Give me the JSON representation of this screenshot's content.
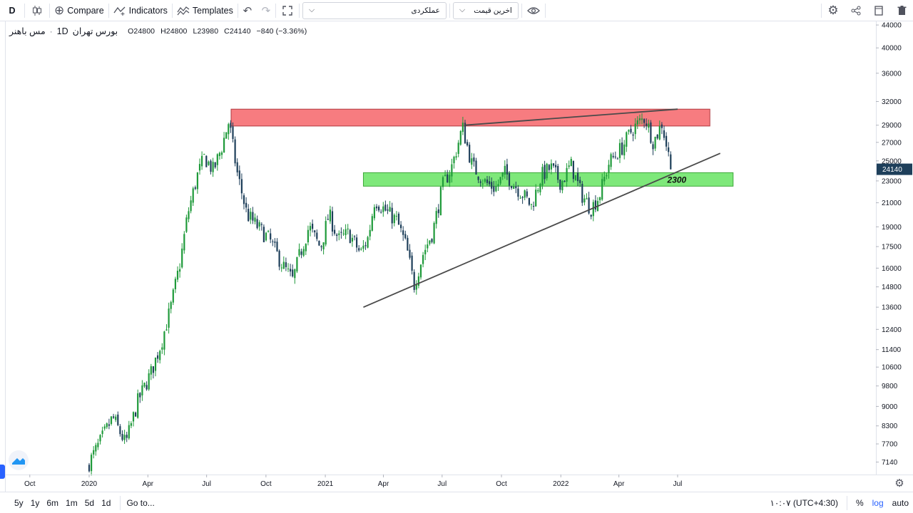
{
  "toolbar": {
    "symbol_letter": "D",
    "compare_label": "Compare",
    "indicators_label": "Indicators",
    "templates_label": "Templates",
    "performance_label": "عملکردی",
    "price_label": "اخرین قیمت"
  },
  "legend": {
    "symbol": "مس باهنر",
    "interval": "1D",
    "exchange": "بورس تهران",
    "open": "O24800",
    "high": "H24800",
    "low": "L23980",
    "close": "C24140",
    "change": "−840 (−3.36%)"
  },
  "colors": {
    "up": "#1f9a3a",
    "down": "#1e3f5a",
    "resistance_zone": "#f77c80",
    "support_zone": "#7ee87a",
    "trendline": "#4a4a4a",
    "price_label_bg": "#1e3f5a",
    "accent": "#2962ff"
  },
  "chart_data": {
    "type": "candlestick",
    "y_scale": "log",
    "y_ticks": [
      44000,
      40000,
      36000,
      32000,
      29000,
      27000,
      25000,
      23000,
      21000,
      19000,
      17500,
      16000,
      14800,
      13600,
      12400,
      11400,
      10600,
      9800,
      9000,
      8300,
      7700,
      7140
    ],
    "x_ticks": [
      "Oct",
      "2020",
      "Apr",
      "Jul",
      "Oct",
      "2021",
      "Apr",
      "Jul",
      "Oct",
      "2022",
      "Apr",
      "Jul"
    ],
    "last_price": 24140,
    "annotation_text": "2300",
    "price_path": [
      [
        "2020-01-01",
        7000
      ],
      [
        "2020-01-20",
        7700
      ],
      [
        "2020-02-10",
        8600
      ],
      [
        "2020-03-01",
        7700
      ],
      [
        "2020-03-20",
        9200
      ],
      [
        "2020-04-10",
        10400
      ],
      [
        "2020-04-25",
        11700
      ],
      [
        "2020-05-10",
        13600
      ],
      [
        "2020-05-25",
        16500
      ],
      [
        "2020-06-05",
        20000
      ],
      [
        "2020-06-20",
        23500
      ],
      [
        "2020-07-01",
        25400
      ],
      [
        "2020-07-15",
        24000
      ],
      [
        "2020-07-28",
        26500
      ],
      [
        "2020-08-08",
        29500
      ],
      [
        "2020-08-20",
        24000
      ],
      [
        "2020-09-05",
        20000
      ],
      [
        "2020-09-25",
        18800
      ],
      [
        "2020-10-10",
        18000
      ],
      [
        "2020-10-30",
        16200
      ],
      [
        "2020-11-15",
        15200
      ],
      [
        "2020-11-25",
        16800
      ],
      [
        "2020-12-10",
        19000
      ],
      [
        "2020-12-28",
        17400
      ],
      [
        "2021-01-10",
        20000
      ],
      [
        "2021-01-25",
        18000
      ],
      [
        "2021-02-10",
        18500
      ],
      [
        "2021-02-28",
        17000
      ],
      [
        "2021-03-12",
        18200
      ],
      [
        "2021-03-22",
        21300
      ],
      [
        "2021-04-10",
        20200
      ],
      [
        "2021-04-25",
        19500
      ],
      [
        "2021-05-10",
        17500
      ],
      [
        "2021-05-22",
        14900
      ],
      [
        "2021-06-05",
        17000
      ],
      [
        "2021-06-20",
        18600
      ],
      [
        "2021-07-05",
        22500
      ],
      [
        "2021-07-20",
        24500
      ],
      [
        "2021-08-05",
        28800
      ],
      [
        "2021-08-20",
        24500
      ],
      [
        "2021-09-10",
        22800
      ],
      [
        "2021-09-25",
        22300
      ],
      [
        "2021-10-10",
        23800
      ],
      [
        "2021-10-25",
        22600
      ],
      [
        "2021-11-10",
        21500
      ],
      [
        "2021-11-20",
        20700
      ],
      [
        "2021-12-05",
        23500
      ],
      [
        "2021-12-20",
        24300
      ],
      [
        "2022-01-05",
        22800
      ],
      [
        "2022-01-20",
        24600
      ],
      [
        "2022-02-05",
        21800
      ],
      [
        "2022-02-20",
        20500
      ],
      [
        "2022-03-05",
        21600
      ],
      [
        "2022-03-20",
        24800
      ],
      [
        "2022-04-10",
        26500
      ],
      [
        "2022-04-25",
        28500
      ],
      [
        "2022-05-15",
        30000
      ],
      [
        "2022-05-28",
        27000
      ],
      [
        "2022-06-10",
        29200
      ],
      [
        "2022-06-25",
        24140
      ]
    ],
    "zones": [
      {
        "name": "resistance",
        "from_date": "2020-08-08",
        "to_date": "2022-08-20",
        "low": 28900,
        "high": 31000
      },
      {
        "name": "support",
        "from_date": "2021-03-01",
        "to_date": "2022-09-25",
        "low": 22500,
        "high": 23800
      }
    ],
    "trendlines": [
      {
        "from": [
          "2021-03-01",
          13600
        ],
        "to": [
          "2022-09-05",
          25800
        ]
      },
      {
        "from": [
          "2021-08-05",
          29000
        ],
        "to": [
          "2022-07-01",
          31000
        ]
      }
    ]
  },
  "axis": {
    "last_price_label": "24140"
  },
  "bottombar": {
    "ranges": [
      "5y",
      "1y",
      "6m",
      "1m",
      "5d",
      "1d"
    ],
    "goto": "Go to...",
    "time": "۱۰:۰۷ (UTC+4:30)",
    "percent": "%",
    "log": "log",
    "auto": "auto"
  }
}
